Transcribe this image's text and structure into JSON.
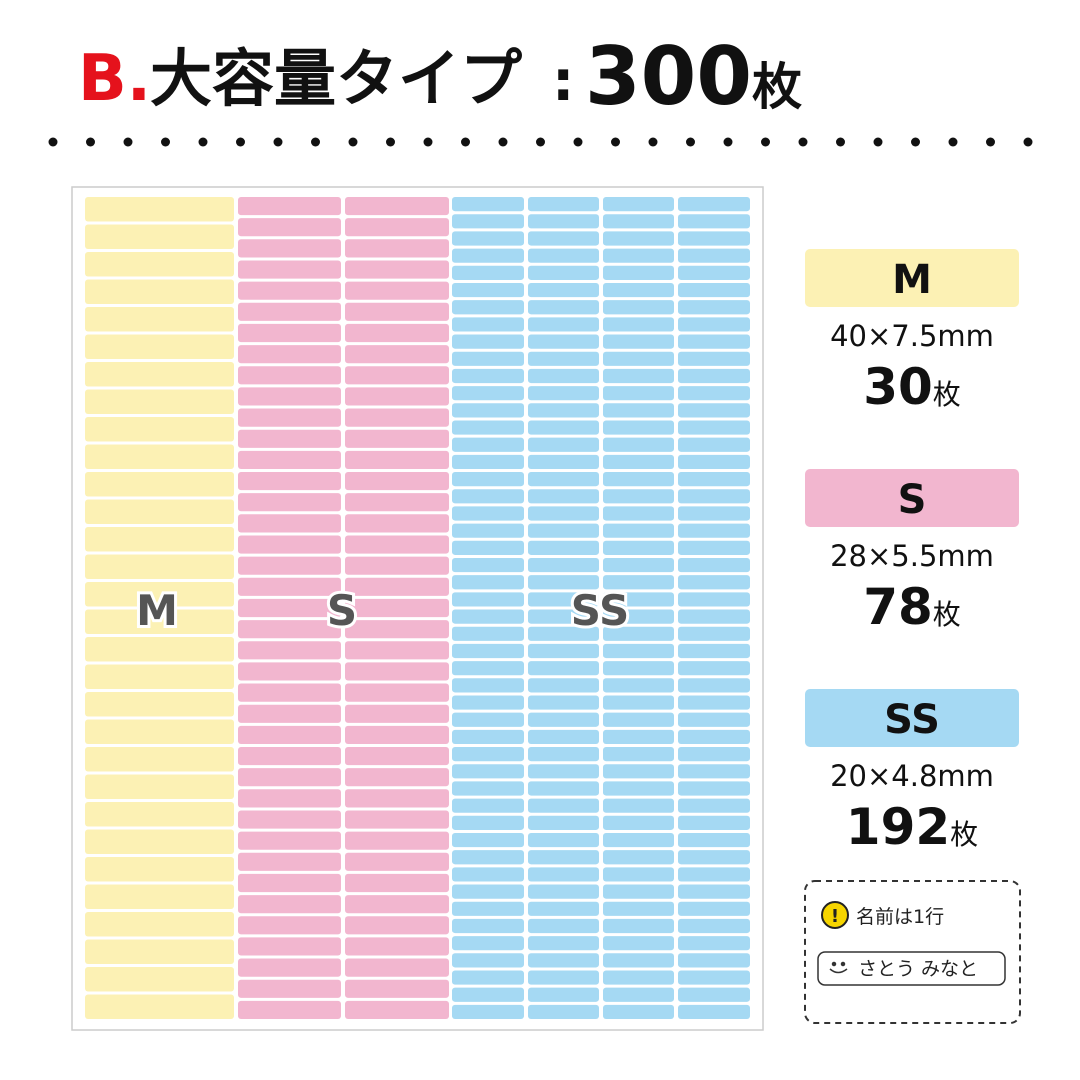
{
  "header": {
    "prefix": "B.",
    "title": "大容量タイプ",
    "separator": ":",
    "total": "300",
    "unit": "枚"
  },
  "sheet": {
    "columns": [
      {
        "label": "M",
        "count": 30,
        "color": "#fcf1b4"
      },
      {
        "label": "S",
        "count": 78,
        "color": "#f2b6cf"
      },
      {
        "label": "SS",
        "count": 192,
        "color": "#a5d9f3"
      }
    ]
  },
  "legend": [
    {
      "name": "M",
      "size": "40×7.5mm",
      "count": "30",
      "unit": "枚",
      "color": "#fcf1b4"
    },
    {
      "name": "S",
      "size": "28×5.5mm",
      "count": "78",
      "unit": "枚",
      "color": "#f2b6cf"
    },
    {
      "name": "SS",
      "size": "20×4.8mm",
      "count": "192",
      "unit": "枚",
      "color": "#a5d9f3"
    }
  ],
  "note": {
    "icon": "!",
    "text": "名前は1行",
    "example": "さとう みなと"
  }
}
